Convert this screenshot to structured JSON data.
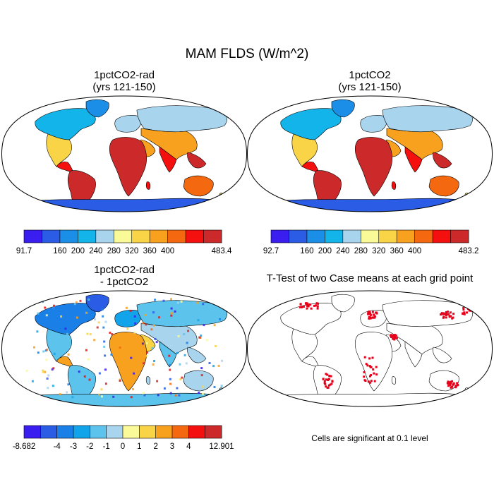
{
  "figure": {
    "title": "MAM FLDS (W/m^2)",
    "note": "Cells are significant at 0.1 level"
  },
  "chart_data": [
    {
      "type": "heatmap",
      "panel": "top-left",
      "title_lines": [
        "1pctCO2-rad",
        "(yrs 121-150)"
      ],
      "colorbar": {
        "min_label": "91.7",
        "max_label": "483.4",
        "ticks": [
          "160",
          "200",
          "240",
          "280",
          "320",
          "360",
          "400"
        ],
        "colors": [
          "#3a1eef",
          "#2a5ce6",
          "#1b8ee8",
          "#12b4ea",
          "#a8d4ee",
          "#fafa98",
          "#f9d447",
          "#f8a11f",
          "#f4680f",
          "#f4100e",
          "#cc2a2a"
        ]
      }
    },
    {
      "type": "heatmap",
      "panel": "top-right",
      "title_lines": [
        "1pctCO2",
        "(yrs 121-150)"
      ],
      "colorbar": {
        "min_label": "92.7",
        "max_label": "483.2",
        "ticks": [
          "160",
          "200",
          "240",
          "280",
          "320",
          "360",
          "400"
        ],
        "colors": [
          "#3a1eef",
          "#2a5ce6",
          "#1b8ee8",
          "#12b4ea",
          "#a8d4ee",
          "#fafa98",
          "#f9d447",
          "#f8a11f",
          "#f4680f",
          "#f4100e",
          "#cc2a2a"
        ]
      }
    },
    {
      "type": "heatmap",
      "panel": "bottom-left",
      "title_lines": [
        "1pctCO2-rad",
        "- 1pctCO2"
      ],
      "colorbar": {
        "min_label": "-8.682",
        "max_label": "12.901",
        "ticks": [
          "-4",
          "-3",
          "-2",
          "-1",
          "0",
          "1",
          "2",
          "3",
          "4"
        ],
        "colors": [
          "#3a1eef",
          "#2a5ce6",
          "#1b7fe8",
          "#12a4ea",
          "#5cc4ec",
          "#a8d4ee",
          "#fafa98",
          "#f9d447",
          "#f8a11f",
          "#f4680f",
          "#f4100e",
          "#cc2a2a"
        ]
      }
    },
    {
      "type": "heatmap",
      "panel": "bottom-right",
      "title_lines": [
        "T-Test of two Case means at each grid point"
      ],
      "significant_color": "#e8001a"
    }
  ]
}
